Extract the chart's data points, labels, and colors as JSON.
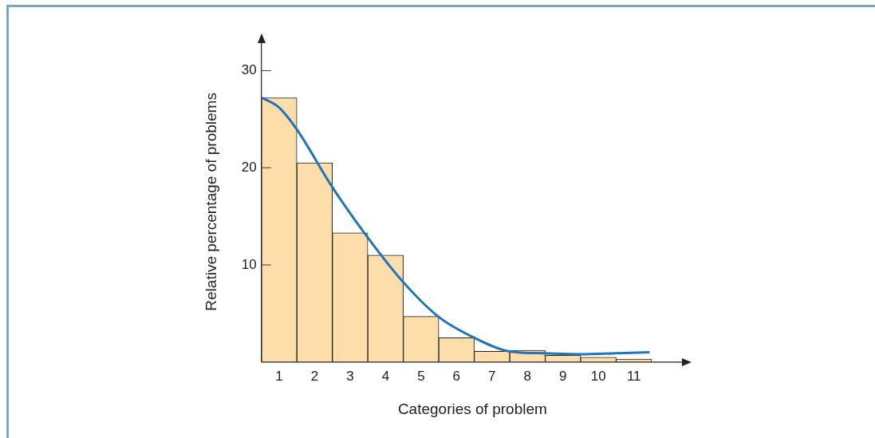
{
  "chart_data": {
    "type": "histogram",
    "xlabel": "Categories of problem",
    "ylabel": "Relative percentage of problems",
    "bins": [
      0.5,
      1.5,
      2.5,
      3.5,
      4.5,
      5.5,
      6.5,
      7.5,
      8.5,
      9.5,
      10.5,
      11.5
    ],
    "values": [
      27.2,
      20.5,
      13.3,
      11.0,
      4.7,
      2.5,
      1.1,
      1.2,
      0.7,
      0.5,
      0.3
    ],
    "color": "#fddeab",
    "xlim": [
      0.5,
      12.4
    ],
    "xticks": [
      1,
      2,
      3,
      4,
      5,
      6,
      7,
      8,
      9,
      10,
      11
    ],
    "ylim": [
      0,
      33
    ],
    "yticks": [
      10,
      20,
      30
    ],
    "grid": false,
    "legend": false,
    "series": [
      {
        "type": "line",
        "color": "#1f74bb",
        "marker": "none",
        "x": [
          0.52,
          1.0,
          1.49,
          2.5,
          3.5,
          4.48,
          5.48,
          6.5,
          7.49,
          8.48,
          9.5,
          10.5,
          11.44
        ],
        "values": [
          27.2,
          26.2,
          24.0,
          18.0,
          12.8,
          8.3,
          4.7,
          2.5,
          1.1,
          0.9,
          0.8,
          0.9,
          1.0
        ]
      }
    ]
  }
}
